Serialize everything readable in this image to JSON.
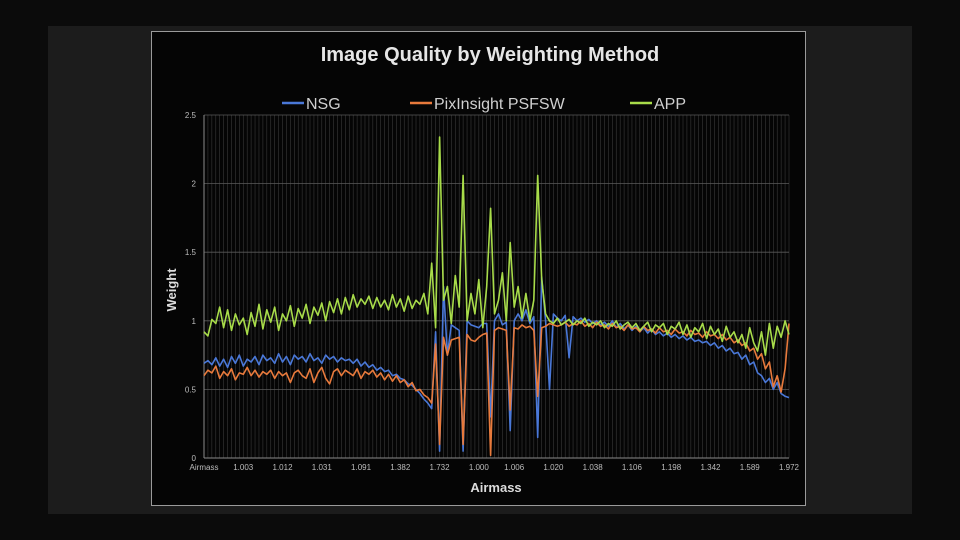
{
  "chart_data": {
    "type": "line",
    "title": "Image Quality by Weighting Method",
    "xlabel": "Airmass",
    "ylabel": "Weight",
    "ylim": [
      0,
      2.5
    ],
    "yticks": [
      "0",
      "0.5",
      "1",
      "1.5",
      "2",
      "2.5"
    ],
    "xtick_labels": [
      "Airmass",
      "1.003",
      "1.012",
      "1.031",
      "1.091",
      "1.382",
      "1.732",
      "1.000",
      "1.006",
      "1.020",
      "1.038",
      "1.106",
      "1.198",
      "1.342",
      "1.589",
      "1.972"
    ],
    "grid": true,
    "legend_position": "top",
    "series": [
      {
        "name": "NSG",
        "color": "#4a78d8",
        "values": [
          0.69,
          0.71,
          0.68,
          0.73,
          0.67,
          0.72,
          0.66,
          0.74,
          0.69,
          0.75,
          0.67,
          0.72,
          0.7,
          0.74,
          0.68,
          0.75,
          0.71,
          0.73,
          0.69,
          0.76,
          0.7,
          0.74,
          0.68,
          0.75,
          0.72,
          0.74,
          0.7,
          0.76,
          0.71,
          0.73,
          0.69,
          0.75,
          0.72,
          0.74,
          0.7,
          0.73,
          0.71,
          0.72,
          0.69,
          0.72,
          0.67,
          0.7,
          0.66,
          0.68,
          0.64,
          0.66,
          0.63,
          0.64,
          0.6,
          0.61,
          0.58,
          0.57,
          0.54,
          0.53,
          0.5,
          0.47,
          0.43,
          0.4,
          0.36,
          0.92,
          0.05,
          1.25,
          0.75,
          0.97,
          0.95,
          0.93,
          0.05,
          1.0,
          0.97,
          0.96,
          0.95,
          0.98,
          0.98,
          0.3,
          1.0,
          1.05,
          0.97,
          0.99,
          0.2,
          1.0,
          1.05,
          1.0,
          1.08,
          0.98,
          1.03,
          0.15,
          1.32,
          1.0,
          0.5,
          1.05,
          1.02,
          1.0,
          1.04,
          0.73,
          1.03,
          1.0,
          1.02,
          0.99,
          1.01,
          0.98,
          1.0,
          0.97,
          0.99,
          0.96,
          1.0,
          0.95,
          0.98,
          0.94,
          0.97,
          0.93,
          0.96,
          0.92,
          0.95,
          0.91,
          0.94,
          0.9,
          0.92,
          0.89,
          0.91,
          0.88,
          0.9,
          0.87,
          0.89,
          0.86,
          0.88,
          0.85,
          0.86,
          0.84,
          0.85,
          0.82,
          0.84,
          0.8,
          0.82,
          0.78,
          0.8,
          0.76,
          0.77,
          0.72,
          0.75,
          0.68,
          0.7,
          0.62,
          0.6,
          0.55,
          0.58,
          0.5,
          0.55,
          0.47,
          0.45,
          0.44
        ]
      },
      {
        "name": "PixInsight PSFSW",
        "color": "#e87a3c",
        "values": [
          0.6,
          0.64,
          0.62,
          0.67,
          0.58,
          0.63,
          0.6,
          0.65,
          0.57,
          0.62,
          0.61,
          0.66,
          0.6,
          0.64,
          0.59,
          0.63,
          0.61,
          0.64,
          0.58,
          0.63,
          0.6,
          0.62,
          0.55,
          0.62,
          0.64,
          0.6,
          0.58,
          0.65,
          0.55,
          0.62,
          0.66,
          0.58,
          0.54,
          0.63,
          0.65,
          0.6,
          0.64,
          0.62,
          0.6,
          0.65,
          0.58,
          0.63,
          0.61,
          0.64,
          0.59,
          0.62,
          0.57,
          0.61,
          0.56,
          0.6,
          0.55,
          0.57,
          0.52,
          0.55,
          0.49,
          0.5,
          0.46,
          0.44,
          0.4,
          0.83,
          0.1,
          0.88,
          0.75,
          0.86,
          0.87,
          0.88,
          0.1,
          0.9,
          0.86,
          0.85,
          0.88,
          0.9,
          0.91,
          0.02,
          0.93,
          0.95,
          0.94,
          0.93,
          0.35,
          0.95,
          0.94,
          0.97,
          0.95,
          0.96,
          0.93,
          0.45,
          0.95,
          0.96,
          0.98,
          0.97,
          0.96,
          0.97,
          0.99,
          0.96,
          0.98,
          0.97,
          1.0,
          0.96,
          0.98,
          0.95,
          0.99,
          0.96,
          0.97,
          0.94,
          0.98,
          0.95,
          0.96,
          0.93,
          0.97,
          0.94,
          0.95,
          0.92,
          0.96,
          0.93,
          0.94,
          0.91,
          0.95,
          0.92,
          0.93,
          0.9,
          0.94,
          0.91,
          0.92,
          0.89,
          0.93,
          0.9,
          0.91,
          0.88,
          0.92,
          0.89,
          0.9,
          0.87,
          0.9,
          0.86,
          0.88,
          0.84,
          0.86,
          0.82,
          0.84,
          0.78,
          0.8,
          0.72,
          0.76,
          0.65,
          0.7,
          0.52,
          0.6,
          0.48,
          0.65,
          0.98
        ]
      },
      {
        "name": "APP",
        "color": "#a8dc4a",
        "values": [
          0.92,
          0.89,
          1.01,
          0.98,
          1.1,
          0.95,
          1.08,
          0.93,
          1.05,
          0.97,
          1.02,
          0.9,
          1.06,
          0.96,
          1.12,
          0.94,
          1.08,
          0.99,
          1.1,
          0.93,
          1.05,
          1.0,
          1.11,
          0.96,
          1.09,
          1.02,
          1.12,
          0.98,
          1.1,
          1.04,
          1.13,
          1.0,
          1.14,
          1.06,
          1.16,
          1.05,
          1.17,
          1.08,
          1.19,
          1.1,
          1.16,
          1.12,
          1.18,
          1.09,
          1.17,
          1.1,
          1.15,
          1.08,
          1.19,
          1.1,
          1.16,
          1.07,
          1.18,
          1.09,
          1.15,
          1.12,
          1.2,
          1.05,
          1.42,
          0.95,
          2.34,
          1.15,
          1.25,
          0.98,
          1.33,
          1.1,
          2.06,
          1.0,
          1.2,
          1.05,
          1.3,
          0.95,
          1.25,
          1.82,
          1.05,
          1.15,
          1.35,
          1.0,
          1.57,
          1.1,
          1.25,
          1.02,
          1.2,
          1.0,
          1.15,
          2.06,
          1.3,
          1.05,
          1.0,
          0.98,
          1.02,
          0.97,
          0.99,
          1.01,
          0.97,
          1.0,
          0.98,
          1.02,
          0.96,
          0.99,
          0.97,
          1.0,
          0.95,
          0.98,
          0.96,
          1.0,
          0.94,
          0.97,
          0.99,
          0.95,
          0.98,
          0.93,
          0.96,
          0.99,
          0.92,
          0.97,
          0.95,
          0.98,
          0.9,
          0.96,
          0.94,
          0.99,
          0.9,
          0.97,
          0.88,
          0.95,
          0.92,
          0.98,
          0.87,
          0.96,
          0.9,
          0.94,
          0.85,
          0.96,
          0.88,
          0.92,
          0.84,
          0.9,
          0.8,
          0.95,
          0.84,
          0.78,
          0.92,
          0.75,
          0.98,
          0.8,
          0.96,
          0.88,
          1.0,
          0.9
        ]
      }
    ]
  }
}
